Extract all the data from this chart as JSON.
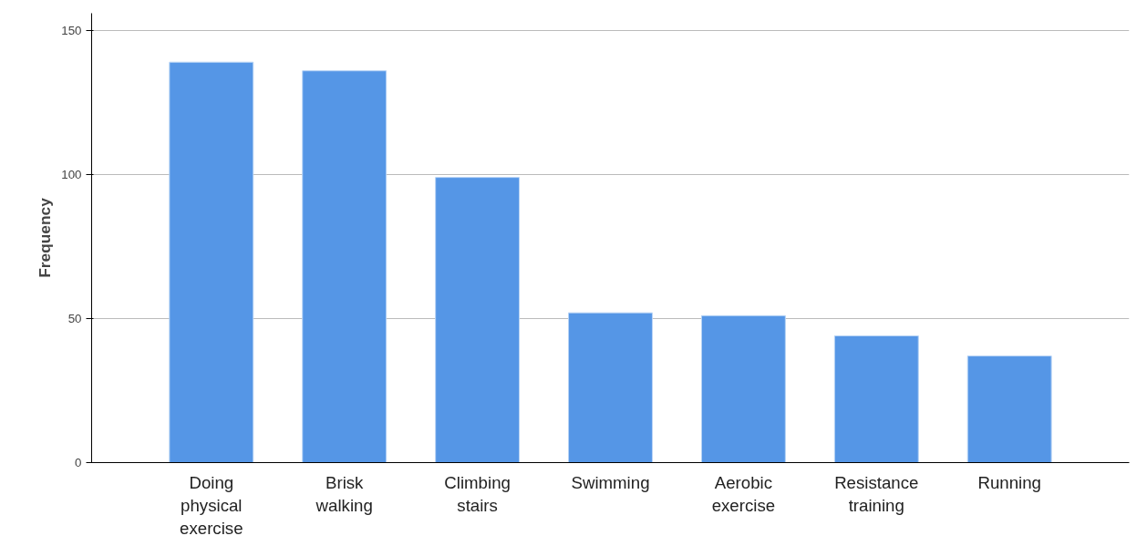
{
  "chart_data": {
    "type": "bar",
    "ylabel": "Frequency",
    "categories": [
      "Doing physical exercise",
      "Brisk walking",
      "Climbing stairs",
      "Swimming",
      "Aerobic exercise",
      "Resistance training",
      "Running"
    ],
    "values": [
      139,
      136,
      99,
      52,
      51,
      44,
      37
    ],
    "color": "#5596e6",
    "ylim": [
      0,
      156
    ],
    "yticks": [
      0,
      50,
      100,
      150
    ],
    "grid": "y"
  }
}
